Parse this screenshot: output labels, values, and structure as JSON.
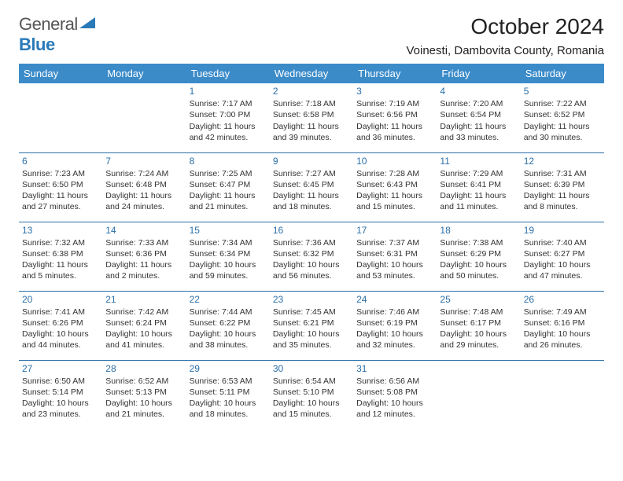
{
  "logo": {
    "text1": "General",
    "text2": "Blue"
  },
  "title": "October 2024",
  "location": "Voinesti, Dambovita County, Romania",
  "colors": {
    "header_bg": "#3b8bc9",
    "header_text": "#ffffff",
    "border": "#2a6fa8",
    "daynum": "#2a6fa8",
    "body_text": "#333333",
    "logo_gray": "#555555",
    "logo_blue": "#2a7ab8"
  },
  "weekdays": [
    "Sunday",
    "Monday",
    "Tuesday",
    "Wednesday",
    "Thursday",
    "Friday",
    "Saturday"
  ],
  "weeks": [
    [
      null,
      null,
      {
        "n": "1",
        "sr": "7:17 AM",
        "ss": "7:00 PM",
        "dl": "11 hours and 42 minutes."
      },
      {
        "n": "2",
        "sr": "7:18 AM",
        "ss": "6:58 PM",
        "dl": "11 hours and 39 minutes."
      },
      {
        "n": "3",
        "sr": "7:19 AM",
        "ss": "6:56 PM",
        "dl": "11 hours and 36 minutes."
      },
      {
        "n": "4",
        "sr": "7:20 AM",
        "ss": "6:54 PM",
        "dl": "11 hours and 33 minutes."
      },
      {
        "n": "5",
        "sr": "7:22 AM",
        "ss": "6:52 PM",
        "dl": "11 hours and 30 minutes."
      }
    ],
    [
      {
        "n": "6",
        "sr": "7:23 AM",
        "ss": "6:50 PM",
        "dl": "11 hours and 27 minutes."
      },
      {
        "n": "7",
        "sr": "7:24 AM",
        "ss": "6:48 PM",
        "dl": "11 hours and 24 minutes."
      },
      {
        "n": "8",
        "sr": "7:25 AM",
        "ss": "6:47 PM",
        "dl": "11 hours and 21 minutes."
      },
      {
        "n": "9",
        "sr": "7:27 AM",
        "ss": "6:45 PM",
        "dl": "11 hours and 18 minutes."
      },
      {
        "n": "10",
        "sr": "7:28 AM",
        "ss": "6:43 PM",
        "dl": "11 hours and 15 minutes."
      },
      {
        "n": "11",
        "sr": "7:29 AM",
        "ss": "6:41 PM",
        "dl": "11 hours and 11 minutes."
      },
      {
        "n": "12",
        "sr": "7:31 AM",
        "ss": "6:39 PM",
        "dl": "11 hours and 8 minutes."
      }
    ],
    [
      {
        "n": "13",
        "sr": "7:32 AM",
        "ss": "6:38 PM",
        "dl": "11 hours and 5 minutes."
      },
      {
        "n": "14",
        "sr": "7:33 AM",
        "ss": "6:36 PM",
        "dl": "11 hours and 2 minutes."
      },
      {
        "n": "15",
        "sr": "7:34 AM",
        "ss": "6:34 PM",
        "dl": "10 hours and 59 minutes."
      },
      {
        "n": "16",
        "sr": "7:36 AM",
        "ss": "6:32 PM",
        "dl": "10 hours and 56 minutes."
      },
      {
        "n": "17",
        "sr": "7:37 AM",
        "ss": "6:31 PM",
        "dl": "10 hours and 53 minutes."
      },
      {
        "n": "18",
        "sr": "7:38 AM",
        "ss": "6:29 PM",
        "dl": "10 hours and 50 minutes."
      },
      {
        "n": "19",
        "sr": "7:40 AM",
        "ss": "6:27 PM",
        "dl": "10 hours and 47 minutes."
      }
    ],
    [
      {
        "n": "20",
        "sr": "7:41 AM",
        "ss": "6:26 PM",
        "dl": "10 hours and 44 minutes."
      },
      {
        "n": "21",
        "sr": "7:42 AM",
        "ss": "6:24 PM",
        "dl": "10 hours and 41 minutes."
      },
      {
        "n": "22",
        "sr": "7:44 AM",
        "ss": "6:22 PM",
        "dl": "10 hours and 38 minutes."
      },
      {
        "n": "23",
        "sr": "7:45 AM",
        "ss": "6:21 PM",
        "dl": "10 hours and 35 minutes."
      },
      {
        "n": "24",
        "sr": "7:46 AM",
        "ss": "6:19 PM",
        "dl": "10 hours and 32 minutes."
      },
      {
        "n": "25",
        "sr": "7:48 AM",
        "ss": "6:17 PM",
        "dl": "10 hours and 29 minutes."
      },
      {
        "n": "26",
        "sr": "7:49 AM",
        "ss": "6:16 PM",
        "dl": "10 hours and 26 minutes."
      }
    ],
    [
      {
        "n": "27",
        "sr": "6:50 AM",
        "ss": "5:14 PM",
        "dl": "10 hours and 23 minutes."
      },
      {
        "n": "28",
        "sr": "6:52 AM",
        "ss": "5:13 PM",
        "dl": "10 hours and 21 minutes."
      },
      {
        "n": "29",
        "sr": "6:53 AM",
        "ss": "5:11 PM",
        "dl": "10 hours and 18 minutes."
      },
      {
        "n": "30",
        "sr": "6:54 AM",
        "ss": "5:10 PM",
        "dl": "10 hours and 15 minutes."
      },
      {
        "n": "31",
        "sr": "6:56 AM",
        "ss": "5:08 PM",
        "dl": "10 hours and 12 minutes."
      },
      null,
      null
    ]
  ],
  "labels": {
    "sunrise": "Sunrise: ",
    "sunset": "Sunset: ",
    "daylight": "Daylight: "
  }
}
